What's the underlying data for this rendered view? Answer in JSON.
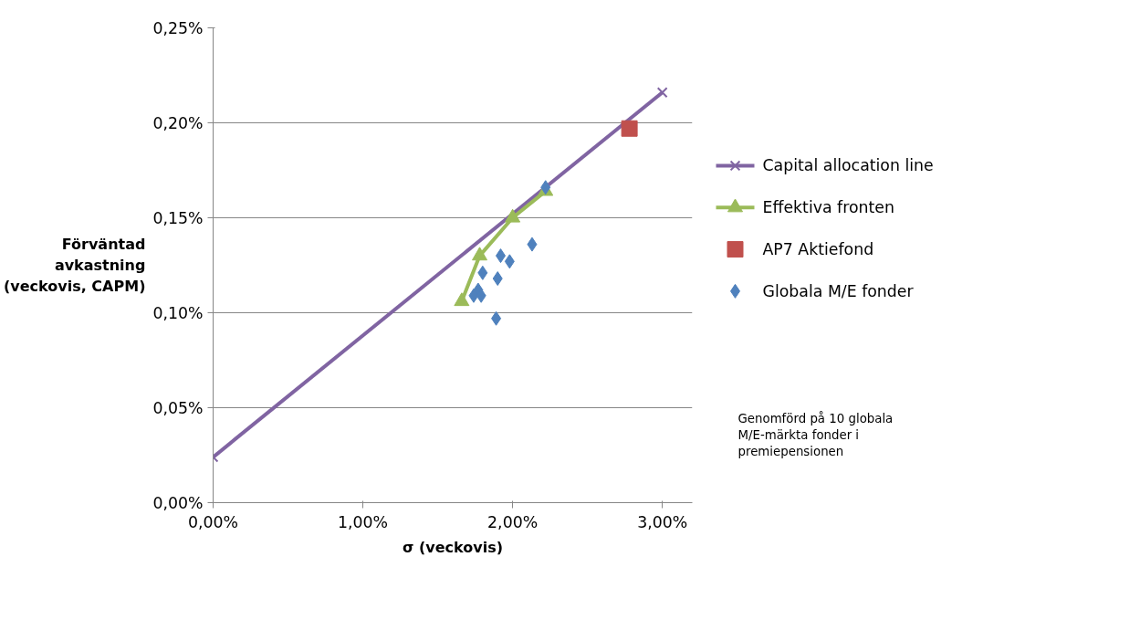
{
  "chart_data": {
    "type": "scatter",
    "xlabel": "σ (veckovis)",
    "ylabel": "Förväntad avkastning (veckovis, CAPM)",
    "xlim": [
      0,
      3.2
    ],
    "ylim": [
      0,
      0.25
    ],
    "xticks": [
      {
        "value": 0,
        "label": "0,00%"
      },
      {
        "value": 1,
        "label": "1,00%"
      },
      {
        "value": 2,
        "label": "2,00%"
      },
      {
        "value": 3,
        "label": "3,00%"
      }
    ],
    "yticks": [
      {
        "value": 0,
        "label": "0,00%"
      },
      {
        "value": 0.05,
        "label": "0,05%"
      },
      {
        "value": 0.1,
        "label": "0,10%"
      },
      {
        "value": 0.15,
        "label": "0,15%"
      },
      {
        "value": 0.2,
        "label": "0,20%"
      },
      {
        "value": 0.25,
        "label": "0,25%"
      }
    ],
    "grid": "y",
    "legend": "right",
    "series": [
      {
        "name": "Capital allocation line",
        "type": "line",
        "marker": "cross",
        "color": "#8064a2",
        "x": [
          0,
          3.0
        ],
        "values": [
          0.024,
          0.216
        ]
      },
      {
        "name": "Effektiva fronten",
        "type": "line",
        "marker": "triangle",
        "color": "#9bbb59",
        "x": [
          1.66,
          1.78,
          2.0,
          2.22
        ],
        "values": [
          0.106,
          0.13,
          0.15,
          0.164
        ]
      },
      {
        "name": "AP7 Aktiefond",
        "marker": "square",
        "color": "#c0504d",
        "x": [
          2.78
        ],
        "values": [
          0.197
        ]
      },
      {
        "name": "Globala M/E fonder",
        "marker": "diamond",
        "color": "#4f81bd",
        "x": [
          2.22,
          2.13,
          1.92,
          1.98,
          1.8,
          1.9,
          1.77,
          1.74,
          1.79,
          1.89
        ],
        "values": [
          0.166,
          0.136,
          0.13,
          0.127,
          0.121,
          0.118,
          0.112,
          0.109,
          0.109,
          0.097
        ]
      }
    ],
    "annotations": [
      "Genomförd på 10 globala M/E-märkta fonder i premiepensionen"
    ]
  }
}
